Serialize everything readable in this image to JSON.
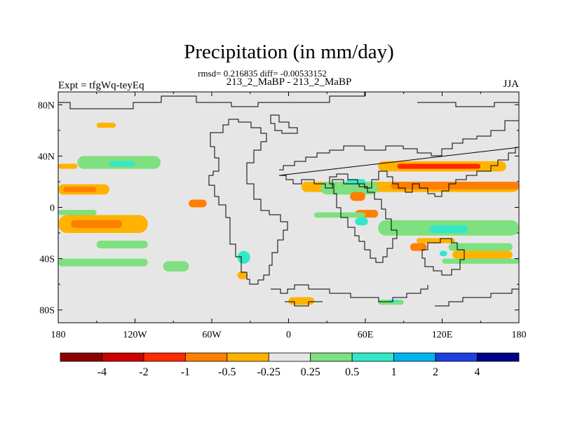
{
  "chart_data": {
    "type": "heatmap",
    "title": "Precipitation (in mm/day)",
    "stats_line": "rmsd= 0.216835 diff= -0.00533152",
    "subtitle": "213_2_MaBP - 213_2_MaBP",
    "left_label": "Expt = tfgWq-teyEq",
    "right_label": "JJA",
    "x_ticks": [
      "180",
      "120W",
      "60W",
      "0",
      "60E",
      "120E",
      "180"
    ],
    "y_ticks": [
      "80N",
      "40N",
      "0",
      "40S",
      "80S"
    ],
    "x_range": [
      -180,
      180
    ],
    "y_range": [
      -90,
      90
    ],
    "colorbar": {
      "labels": [
        "-4",
        "-2",
        "-1",
        "-0.5",
        "-0.25",
        "0.25",
        "0.5",
        "1",
        "2",
        "4"
      ],
      "colors": [
        "#8b0000",
        "#cc0000",
        "#ff2a00",
        "#ff7f00",
        "#ffb300",
        "#e6e6e6",
        "#7ee07e",
        "#33e8c8",
        "#00b4f0",
        "#1f3fe0",
        "#000088"
      ]
    },
    "anomaly_regions": [
      {
        "lon": [
          -180,
          -140
        ],
        "lat": [
          10,
          18
        ],
        "color": "#ffb300"
      },
      {
        "lon": [
          -176,
          -150
        ],
        "lat": [
          12,
          16
        ],
        "color": "#ff7f00"
      },
      {
        "lon": [
          -180,
          -110
        ],
        "lat": [
          -20,
          -6
        ],
        "color": "#ffb300"
      },
      {
        "lon": [
          -170,
          -130
        ],
        "lat": [
          -16,
          -10
        ],
        "color": "#ff7f00"
      },
      {
        "lon": [
          -165,
          -100
        ],
        "lat": [
          30,
          40
        ],
        "color": "#7ee07e"
      },
      {
        "lon": [
          -140,
          -120
        ],
        "lat": [
          32,
          36
        ],
        "color": "#33e8c8"
      },
      {
        "lon": [
          -180,
          -165
        ],
        "lat": [
          30,
          34
        ],
        "color": "#ffb300"
      },
      {
        "lon": [
          -180,
          -150
        ],
        "lat": [
          -6,
          -2
        ],
        "color": "#7ee07e"
      },
      {
        "lon": [
          -150,
          -110
        ],
        "lat": [
          -32,
          -26
        ],
        "color": "#7ee07e"
      },
      {
        "lon": [
          -180,
          -110
        ],
        "lat": [
          -46,
          -40
        ],
        "color": "#7ee07e"
      },
      {
        "lon": [
          -150,
          -135
        ],
        "lat": [
          62,
          66
        ],
        "color": "#ffb300"
      },
      {
        "lon": [
          -78,
          -64
        ],
        "lat": [
          0,
          6
        ],
        "color": "#ff7f00"
      },
      {
        "lon": [
          -98,
          -78
        ],
        "lat": [
          -50,
          -42
        ],
        "color": "#7ee07e"
      },
      {
        "lon": [
          -40,
          -30
        ],
        "lat": [
          -44,
          -34
        ],
        "color": "#33e8c8"
      },
      {
        "lon": [
          -40,
          -32
        ],
        "lat": [
          -56,
          -50
        ],
        "color": "#ffb300"
      },
      {
        "lon": [
          10,
          180
        ],
        "lat": [
          12,
          20
        ],
        "color": "#ffb300"
      },
      {
        "lon": [
          80,
          180
        ],
        "lat": [
          14,
          20
        ],
        "color": "#ff7f00"
      },
      {
        "lon": [
          70,
          170
        ],
        "lat": [
          28,
          36
        ],
        "color": "#ffb300"
      },
      {
        "lon": [
          85,
          150
        ],
        "lat": [
          30,
          34
        ],
        "color": "#ff2a00"
      },
      {
        "lon": [
          25,
          70
        ],
        "lat": [
          10,
          20
        ],
        "color": "#7ee07e"
      },
      {
        "lon": [
          45,
          60
        ],
        "lat": [
          18,
          22
        ],
        "color": "#33e8c8"
      },
      {
        "lon": [
          48,
          60
        ],
        "lat": [
          5,
          12
        ],
        "color": "#ff7f00"
      },
      {
        "lon": [
          52,
          70
        ],
        "lat": [
          -8,
          -2
        ],
        "color": "#ff7f00"
      },
      {
        "lon": [
          52,
          62
        ],
        "lat": [
          -14,
          -8
        ],
        "color": "#33e8c8"
      },
      {
        "lon": [
          70,
          180
        ],
        "lat": [
          -22,
          -10
        ],
        "color": "#7ee07e"
      },
      {
        "lon": [
          110,
          140
        ],
        "lat": [
          -20,
          -14
        ],
        "color": "#33e8c8"
      },
      {
        "lon": [
          100,
          130
        ],
        "lat": [
          -28,
          -24
        ],
        "color": "#ffb300"
      },
      {
        "lon": [
          95,
          108
        ],
        "lat": [
          -34,
          -28
        ],
        "color": "#ff7f00"
      },
      {
        "lon": [
          125,
          175
        ],
        "lat": [
          -34,
          -28
        ],
        "color": "#7ee07e"
      },
      {
        "lon": [
          128,
          175
        ],
        "lat": [
          -40,
          -34
        ],
        "color": "#ffb300"
      },
      {
        "lon": [
          118,
          124
        ],
        "lat": [
          -38,
          -34
        ],
        "color": "#33e8c8"
      },
      {
        "lon": [
          120,
          180
        ],
        "lat": [
          -44,
          -40
        ],
        "color": "#7ee07e"
      },
      {
        "lon": [
          0,
          20
        ],
        "lat": [
          -76,
          -70
        ],
        "color": "#ffb300"
      },
      {
        "lon": [
          70,
          90
        ],
        "lat": [
          -76,
          -72
        ],
        "color": "#7ee07e"
      },
      {
        "lon": [
          78,
          86
        ],
        "lat": [
          -74,
          -72
        ],
        "color": "#33e8c8"
      },
      {
        "lon": [
          20,
          60
        ],
        "lat": [
          -8,
          -4
        ],
        "color": "#7ee07e"
      }
    ]
  }
}
